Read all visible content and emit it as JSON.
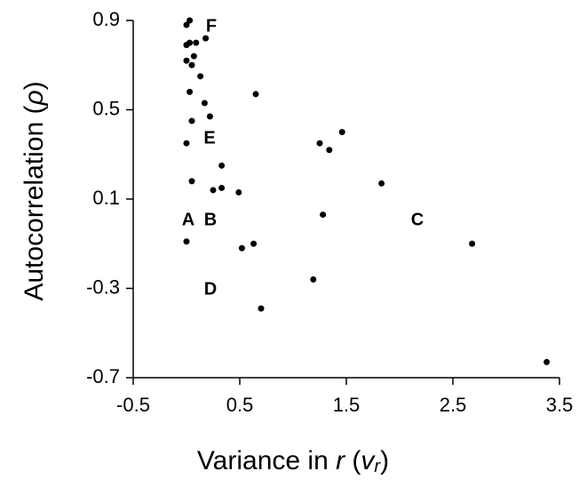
{
  "chart_data": {
    "type": "scatter",
    "x_label": [
      "Variance in ",
      "r",
      " (",
      "v",
      "r",
      ")"
    ],
    "y_label": [
      "Autocorrelation (",
      "ρ",
      ")"
    ],
    "annotations": [
      "F",
      "E",
      "A",
      "B",
      "C",
      "D"
    ],
    "color": "#000000",
    "x": [
      0.0,
      0.03,
      0.0,
      0.03,
      0.09,
      0.18,
      0.07,
      0.0,
      0.05,
      0.13,
      0.03,
      0.65,
      0.17,
      0.22,
      0.05,
      1.46,
      0.0,
      1.25,
      1.34,
      0.33,
      0.05,
      1.83,
      0.33,
      0.25,
      0.49,
      1.28,
      0.0,
      0.63,
      0.52,
      2.68,
      1.19,
      0.7,
      3.38
    ],
    "values": [
      0.88,
      0.9,
      0.79,
      0.8,
      0.8,
      0.82,
      0.74,
      0.72,
      0.7,
      0.65,
      0.58,
      0.57,
      0.53,
      0.47,
      0.45,
      0.4,
      0.35,
      0.35,
      0.32,
      0.25,
      0.18,
      0.17,
      0.15,
      0.14,
      0.13,
      0.03,
      -0.09,
      -0.1,
      -0.12,
      -0.1,
      -0.26,
      -0.39,
      -0.63
    ],
    "xlim": [
      -0.5,
      3.5
    ],
    "xticks": [
      -0.5,
      0.5,
      1.5,
      2.5,
      3.5
    ],
    "ylim": [
      -0.7,
      0.9
    ],
    "yticks": [
      -0.7,
      -0.3,
      0.1,
      0.5,
      0.9
    ]
  }
}
